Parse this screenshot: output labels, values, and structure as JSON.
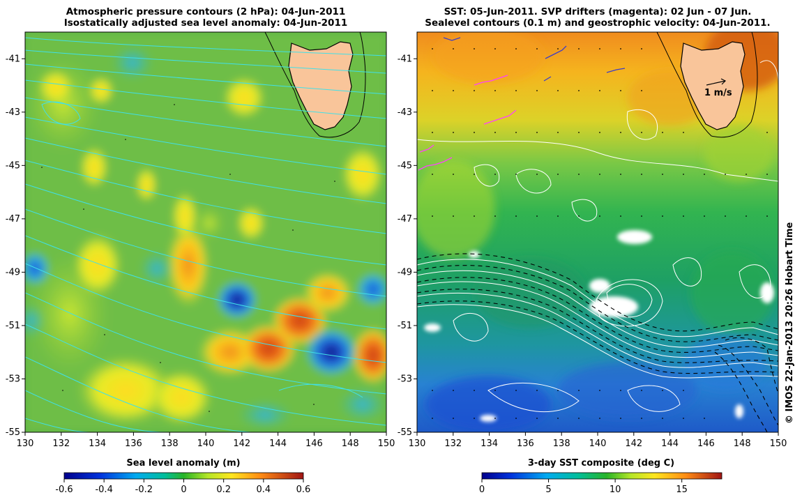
{
  "left_panel": {
    "title_line1": "Atmospheric pressure contours (2 hPa): 04-Jun-2011",
    "title_line2": "Isostatically adjusted sea level anomaly: 04-Jun-2011",
    "x_ticks": [
      "130",
      "132",
      "134",
      "136",
      "138",
      "140",
      "142",
      "144",
      "146",
      "148",
      "150"
    ],
    "y_ticks": [
      "-41",
      "-43",
      "-45",
      "-47",
      "-49",
      "-51",
      "-53",
      "-55"
    ],
    "colorbar_label": "Sea level anomaly (m)",
    "colorbar_ticks": [
      "-0.6",
      "-0.4",
      "-0.2",
      "0",
      "0.2",
      "0.4",
      "0.6"
    ],
    "colorbar_range": [
      -0.6,
      0.6
    ]
  },
  "right_panel": {
    "title_line1": "SST: 05-Jun-2011. SVP drifters (magenta): 02 Jun - 07 Jun.",
    "title_line2": "Sealevel contours (0.1 m) and geostrophic velocity: 04-Jun-2011.",
    "x_ticks": [
      "130",
      "132",
      "134",
      "136",
      "138",
      "140",
      "142",
      "144",
      "146",
      "148",
      "150"
    ],
    "y_ticks": [
      "-41",
      "-43",
      "-45",
      "-47",
      "-49",
      "-51",
      "-53",
      "-55"
    ],
    "velocity_scale_label": "1 m/s",
    "colorbar_label": "3-day SST composite (deg C)",
    "colorbar_ticks": [
      "0",
      "5",
      "10",
      "15"
    ],
    "colorbar_range": [
      0,
      18
    ]
  },
  "map_extent": {
    "lon": [
      130,
      150
    ],
    "lat": [
      -55,
      -40
    ]
  },
  "side_text": "© IMOS 22-Jan-2013 20:26 Hobart Time",
  "colors": {
    "land": "#f9c59a",
    "pressure_contour": "#40e0e8",
    "sealevel_contour": "#ffffff",
    "drifter": "#ff40ff",
    "velocity_arrow": "#000000"
  }
}
